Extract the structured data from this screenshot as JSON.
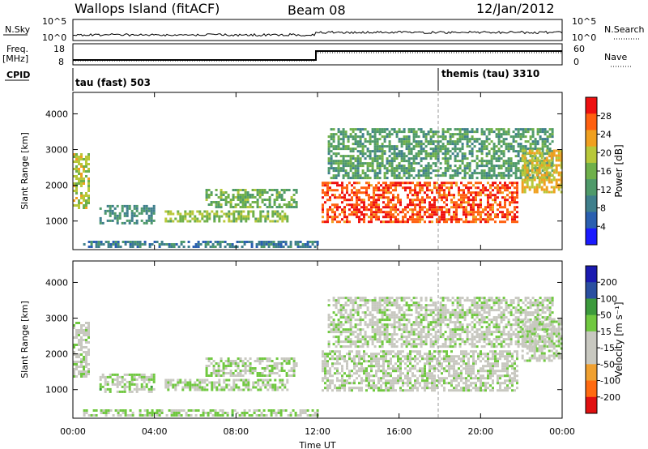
{
  "header": {
    "station": "Wallops Island (fitACF)",
    "beam": "Beam 08",
    "date": "12/Jan/2012"
  },
  "panels": {
    "nsky": {
      "label": "N.Sky",
      "right_label": "N.Search",
      "ticks": [
        "10^5",
        "10^0"
      ],
      "right_ticks": [
        "10^5",
        "10^0"
      ]
    },
    "freq": {
      "label": "Freq.",
      "unit": "[MHz]",
      "ticks": [
        "18",
        "8"
      ],
      "right_label": "Nave",
      "right_ticks": [
        "60",
        "0"
      ]
    },
    "cpid": {
      "label": "CPID",
      "modes": [
        {
          "name": "tau (fast) 503",
          "start": "00:00"
        },
        {
          "name": "themis (tau) 3310",
          "start": "18:00"
        }
      ]
    }
  },
  "chart_data": [
    {
      "type": "heatmap",
      "title": "",
      "ylabel": "Slant Range [km]",
      "xlabel": "",
      "x_ticks": [
        "00:00",
        "04:00",
        "08:00",
        "12:00",
        "16:00",
        "20:00",
        "00:00"
      ],
      "y_ticks": [
        1000,
        2000,
        3000,
        4000
      ],
      "ylim": [
        200,
        4600
      ],
      "xlim_hours": [
        0,
        24
      ],
      "colorbar": {
        "label": "Power [dB]",
        "ticks": [
          "28",
          "24",
          "20",
          "16",
          "12",
          "8",
          "4"
        ],
        "range": [
          0,
          30
        ]
      },
      "echo_regions": [
        {
          "t0": 0.0,
          "t1": 0.8,
          "r0": 1400,
          "r1": 2900,
          "level": 18
        },
        {
          "t0": 1.3,
          "t1": 4.0,
          "r0": 950,
          "r1": 1450,
          "level": 10
        },
        {
          "t0": 4.5,
          "t1": 10.5,
          "r0": 1000,
          "r1": 1300,
          "level": 16
        },
        {
          "t0": 6.5,
          "t1": 11.0,
          "r0": 1400,
          "r1": 1900,
          "level": 14
        },
        {
          "t0": 12.2,
          "t1": 21.8,
          "r0": 1000,
          "r1": 2100,
          "level": 26
        },
        {
          "t0": 12.5,
          "t1": 23.5,
          "r0": 2200,
          "r1": 3600,
          "level": 12
        },
        {
          "t0": 22.0,
          "t1": 24.0,
          "r0": 1800,
          "r1": 3000,
          "level": 20
        },
        {
          "t0": 0.5,
          "t1": 12.0,
          "r0": 250,
          "r1": 450,
          "level": 8
        }
      ]
    },
    {
      "type": "heatmap",
      "title": "",
      "ylabel": "Slant Range [km]",
      "xlabel": "Time UT",
      "x_ticks": [
        "00:00",
        "04:00",
        "08:00",
        "12:00",
        "16:00",
        "20:00",
        "00:00"
      ],
      "y_ticks": [
        1000,
        2000,
        3000,
        4000
      ],
      "ylim": [
        200,
        4600
      ],
      "xlim_hours": [
        0,
        24
      ],
      "colorbar": {
        "label": "Velocity [m s⁻¹]",
        "ticks": [
          "200",
          "100",
          "50",
          "15",
          "-15",
          "-50",
          "-100",
          "-200"
        ],
        "range": [
          -250,
          250
        ]
      },
      "echo_regions": [
        {
          "t0": 0.0,
          "t1": 0.8,
          "r0": 1400,
          "r1": 2900,
          "level": 0
        },
        {
          "t0": 1.3,
          "t1": 4.0,
          "r0": 950,
          "r1": 1450,
          "level": 30
        },
        {
          "t0": 4.5,
          "t1": 10.5,
          "r0": 1000,
          "r1": 1300,
          "level": 20
        },
        {
          "t0": 6.5,
          "t1": 11.0,
          "r0": 1400,
          "r1": 1900,
          "level": 25
        },
        {
          "t0": 12.2,
          "t1": 21.8,
          "r0": 1000,
          "r1": 2100,
          "level": 0
        },
        {
          "t0": 12.5,
          "t1": 23.5,
          "r0": 2200,
          "r1": 3600,
          "level": 0
        },
        {
          "t0": 22.0,
          "t1": 24.0,
          "r0": 1800,
          "r1": 3000,
          "level": 0
        },
        {
          "t0": 0.5,
          "t1": 12.0,
          "r0": 250,
          "r1": 450,
          "level": 30
        }
      ]
    }
  ],
  "colors": {
    "power_scale": [
      "#1a1aff",
      "#2a5fb0",
      "#3f7f8c",
      "#4f9a6a",
      "#6fb04a",
      "#b8c83a",
      "#f0a020",
      "#ff6010",
      "#ee1010"
    ],
    "velocity_scale": [
      "#e01010",
      "#ff6a10",
      "#f0a030",
      "#c8c8c0",
      "#c8c8c0",
      "#70c840",
      "#3c9a3c",
      "#2a4fa0",
      "#1a1ab0"
    ],
    "axis": "#000000",
    "cpid_marker": "#999999"
  }
}
